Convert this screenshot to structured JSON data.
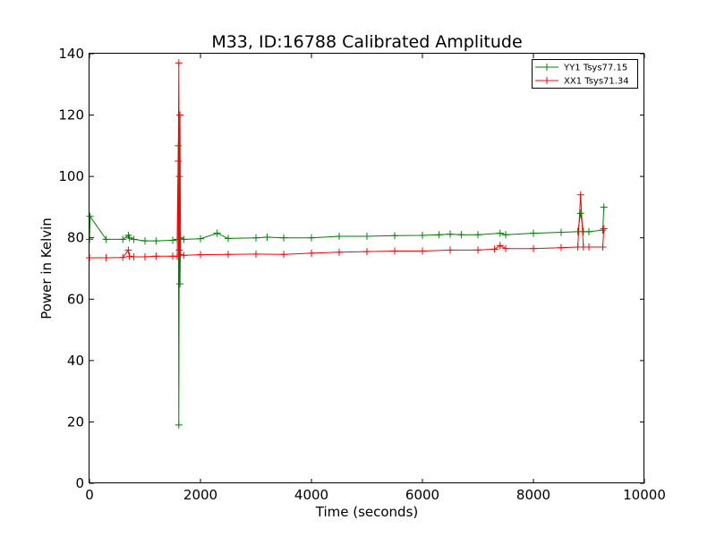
{
  "chart_data": {
    "type": "scatter",
    "title": "M33, ID:16788 Calibrated Amplitude",
    "xlabel": "Time (seconds)",
    "ylabel": "Power in Kelvin",
    "xlim": [
      0,
      10000
    ],
    "ylim": [
      0,
      140
    ],
    "xticks": [
      "0",
      "2000",
      "4000",
      "6000",
      "8000",
      "10000"
    ],
    "yticks": [
      "0",
      "20",
      "40",
      "60",
      "80",
      "100",
      "120",
      "140"
    ],
    "xtick_values": [
      0,
      2000,
      4000,
      6000,
      8000,
      10000
    ],
    "ytick_values": [
      0,
      20,
      40,
      60,
      80,
      100,
      120,
      140
    ],
    "grid": false,
    "legend_position": "top-right",
    "marker": "+",
    "series": [
      {
        "name": "YY1 Tsys77.15",
        "color": "#008000",
        "x": [
          0,
          10,
          300,
          600,
          700,
          720,
          800,
          1000,
          1200,
          1500,
          1580,
          1600,
          1610,
          1620,
          1630,
          1640,
          1700,
          2000,
          2300,
          2500,
          3000,
          3200,
          3500,
          4000,
          4500,
          5000,
          5500,
          6000,
          6300,
          6500,
          6700,
          7000,
          7400,
          7500,
          8000,
          8500,
          8800,
          8850,
          8900,
          9000,
          9250,
          9270
        ],
        "y": [
          79.5,
          87,
          79.5,
          79.5,
          80.8,
          80,
          79.5,
          79,
          79,
          79.2,
          79.5,
          110,
          19,
          100,
          65,
          80,
          79.5,
          79.7,
          81.5,
          79.8,
          80,
          80.2,
          80,
          80,
          80.5,
          80.5,
          80.7,
          80.8,
          81,
          81.2,
          81,
          81,
          81.5,
          81,
          81.5,
          81.8,
          82,
          88,
          82,
          82,
          82.5,
          90
        ]
      },
      {
        "name": "XX1 Tsys71.34",
        "color": "#ff0000",
        "x": [
          0,
          300,
          600,
          700,
          720,
          800,
          1000,
          1200,
          1500,
          1580,
          1600,
          1610,
          1620,
          1630,
          1640,
          1700,
          2000,
          2500,
          3000,
          3500,
          4000,
          4500,
          5000,
          5500,
          6000,
          6500,
          7000,
          7300,
          7400,
          7500,
          8000,
          8500,
          8800,
          8850,
          8900,
          9000,
          9250,
          9270
        ],
        "y": [
          73.5,
          73.5,
          73.6,
          76,
          74,
          73.8,
          73.8,
          74,
          74,
          74,
          105,
          137,
          76,
          120,
          74.5,
          74.3,
          74.5,
          74.6,
          74.7,
          74.6,
          75,
          75.3,
          75.5,
          75.7,
          75.7,
          76,
          76,
          76.3,
          77.5,
          76.5,
          76.5,
          76.8,
          77,
          94,
          77,
          77,
          77,
          83
        ]
      }
    ]
  }
}
